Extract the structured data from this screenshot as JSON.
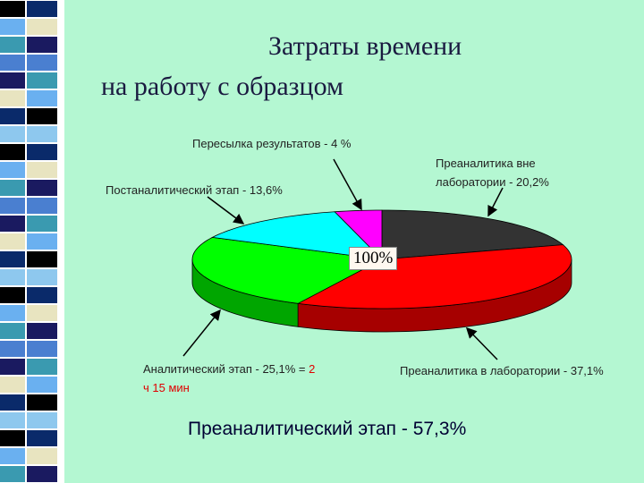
{
  "chart_data": {
    "type": "pie",
    "title": [
      "Затраты времени",
      "на работу с образцом"
    ],
    "categories": [
      "Преаналитика вне лаборатории - 20,2%",
      "Преаналитика в лаборатории - 37,1%",
      "Аналитический этап - 25,1% =",
      "Постаналитический этап - 13,6%",
      "Пересылка результатов - 4 %"
    ],
    "values": [
      20.2,
      37.1,
      25.1,
      13.6,
      4
    ],
    "colors": [
      "#333333",
      "#ff0000",
      "#00ff00",
      "#00ffff",
      "#ff00ff"
    ],
    "annotation": "2 ч 15 мин",
    "center_label": "100%",
    "summary": "Преаналитический этап - 57,3%"
  }
}
